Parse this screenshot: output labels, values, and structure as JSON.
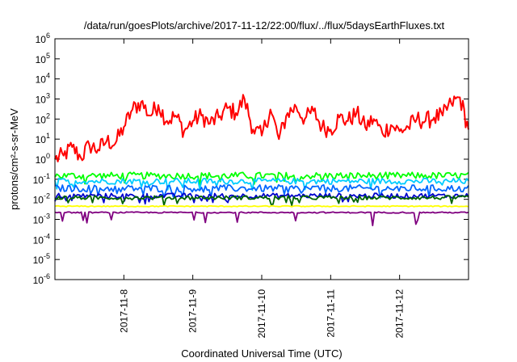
{
  "chart_data": {
    "type": "line",
    "title": "/data/run/goesPlots/archive/2017-11-12/22:00/flux/../flux/5daysEarthFluxes.txt",
    "xlabel": "Coordinated Universal Time (UTC)",
    "ylabel": "protons/cm²-s-sr-MeV",
    "yscale": "log",
    "ylim": [
      1e-06,
      1000000.0
    ],
    "xlim": [
      "2017-11-07T00:00",
      "2017-11-13T00:00"
    ],
    "grid": false,
    "y_ticks": [
      {
        "value": 1e-06,
        "base": "10",
        "exp": "-6"
      },
      {
        "value": 1e-05,
        "base": "10",
        "exp": "-5"
      },
      {
        "value": 0.0001,
        "base": "10",
        "exp": "-4"
      },
      {
        "value": 0.001,
        "base": "10",
        "exp": "-3"
      },
      {
        "value": 0.01,
        "base": "10",
        "exp": "-2"
      },
      {
        "value": 0.1,
        "base": "10",
        "exp": "-1"
      },
      {
        "value": 1,
        "base": "10",
        "exp": "0"
      },
      {
        "value": 10,
        "base": "10",
        "exp": "1"
      },
      {
        "value": 100,
        "base": "10",
        "exp": "2"
      },
      {
        "value": 1000,
        "base": "10",
        "exp": "3"
      },
      {
        "value": 10000,
        "base": "10",
        "exp": "4"
      },
      {
        "value": 100000,
        "base": "10",
        "exp": "5"
      },
      {
        "value": 1000000,
        "base": "10",
        "exp": "6"
      }
    ],
    "x_ticks": [
      {
        "value": "2017-11-08T00:00",
        "label": "2017-11-8"
      },
      {
        "value": "2017-11-09T00:00",
        "label": "2017-11-9"
      },
      {
        "value": "2017-11-10T00:00",
        "label": "2017-11-10"
      },
      {
        "value": "2017-11-11T00:00",
        "label": "2017-11-11"
      },
      {
        "value": "2017-11-12T00:00",
        "label": "2017-11-12"
      }
    ],
    "series": [
      {
        "color": "#ff0000",
        "style": "noisy",
        "values": [
          [
            "2017-11-07T00:00",
            1.0
          ],
          [
            "2017-11-07T03:00",
            1.5
          ],
          [
            "2017-11-07T06:00",
            4
          ],
          [
            "2017-11-07T09:00",
            1.2
          ],
          [
            "2017-11-07T12:00",
            5
          ],
          [
            "2017-11-07T15:00",
            3
          ],
          [
            "2017-11-07T18:00",
            8
          ],
          [
            "2017-11-07T21:00",
            6
          ],
          [
            "2017-11-08T00:00",
            40
          ],
          [
            "2017-11-08T03:00",
            300
          ],
          [
            "2017-11-08T06:00",
            700
          ],
          [
            "2017-11-08T09:00",
            150
          ],
          [
            "2017-11-08T12:00",
            500
          ],
          [
            "2017-11-08T15:00",
            80
          ],
          [
            "2017-11-08T18:00",
            150
          ],
          [
            "2017-11-08T21:00",
            25
          ],
          [
            "2017-11-09T00:00",
            80
          ],
          [
            "2017-11-09T03:00",
            150
          ],
          [
            "2017-11-09T06:00",
            60
          ],
          [
            "2017-11-09T09:00",
            120
          ],
          [
            "2017-11-09T12:00",
            350
          ],
          [
            "2017-11-09T15:00",
            200
          ],
          [
            "2017-11-09T18:00",
            1000
          ],
          [
            "2017-11-09T21:00",
            30
          ],
          [
            "2017-11-10T00:00",
            15
          ],
          [
            "2017-11-10T03:00",
            300
          ],
          [
            "2017-11-10T06:00",
            10
          ],
          [
            "2017-11-10T09:00",
            200
          ],
          [
            "2017-11-10T12:00",
            400
          ],
          [
            "2017-11-10T15:00",
            100
          ],
          [
            "2017-11-10T18:00",
            250
          ],
          [
            "2017-11-10T21:00",
            40
          ],
          [
            "2017-11-11T00:00",
            30
          ],
          [
            "2017-11-11T03:00",
            120
          ],
          [
            "2017-11-11T06:00",
            80
          ],
          [
            "2017-11-11T09:00",
            200
          ],
          [
            "2017-11-11T12:00",
            40
          ],
          [
            "2017-11-11T15:00",
            100
          ],
          [
            "2017-11-11T18:00",
            20
          ],
          [
            "2017-11-11T21:00",
            50
          ],
          [
            "2017-11-12T00:00",
            25
          ],
          [
            "2017-11-12T03:00",
            40
          ],
          [
            "2017-11-12T06:00",
            100
          ],
          [
            "2017-11-12T09:00",
            80
          ],
          [
            "2017-11-12T12:00",
            120
          ],
          [
            "2017-11-12T15:00",
            150
          ],
          [
            "2017-11-12T18:00",
            600
          ],
          [
            "2017-11-12T21:00",
            1200
          ],
          [
            "2017-11-12T23:59",
            30
          ]
        ]
      },
      {
        "color": "#00ff00",
        "style": "noisy",
        "level": 0.15,
        "spread": 0.35
      },
      {
        "color": "#00ccff",
        "style": "noisy",
        "level": 0.08,
        "spread": 0.3
      },
      {
        "color": "#0066ff",
        "style": "noisy",
        "level": 0.035,
        "spread": 0.35
      },
      {
        "color": "#0000cc",
        "style": "noisy",
        "level": 0.015,
        "spread": 0.25
      },
      {
        "color": "#006400",
        "style": "noisy",
        "level": 0.012,
        "spread": 0.2
      },
      {
        "color": "#ffff00",
        "style": "flat",
        "level": 0.0045,
        "spread": 0.05
      },
      {
        "color": "#800080",
        "style": "spiky",
        "level": 0.0022,
        "spread": 0.06
      }
    ]
  }
}
